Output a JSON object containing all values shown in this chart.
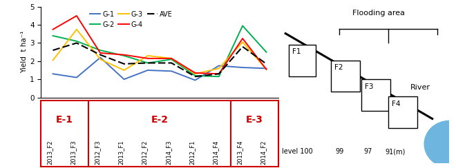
{
  "x_labels": [
    "2013_F2",
    "2013_F3",
    "2012_F3",
    "2013_F1",
    "2012_F2",
    "2014_F3",
    "2012_F1",
    "2014_F4",
    "2013_F4",
    "2014_F2"
  ],
  "G1": [
    1.3,
    1.1,
    2.2,
    1.0,
    1.5,
    1.45,
    0.95,
    1.75,
    1.65,
    1.6
  ],
  "G2": [
    3.4,
    3.1,
    2.6,
    2.3,
    1.9,
    2.1,
    1.2,
    1.15,
    3.95,
    2.5
  ],
  "G3": [
    2.05,
    3.75,
    2.1,
    1.5,
    2.3,
    2.15,
    1.3,
    1.6,
    3.05,
    1.55
  ],
  "G4": [
    3.75,
    4.5,
    2.45,
    2.35,
    2.15,
    2.15,
    1.35,
    1.3,
    3.25,
    1.55
  ],
  "AVE": [
    2.6,
    3.0,
    2.35,
    1.85,
    1.9,
    1.9,
    1.15,
    1.3,
    2.8,
    1.85
  ],
  "colors": {
    "G1": "#4472C4",
    "G2": "#00B050",
    "G3": "#FFC000",
    "G4": "#FF0000",
    "AVE": "#000000"
  },
  "ylim": [
    0,
    5
  ],
  "yticks": [
    0,
    1,
    2,
    3,
    4,
    5
  ],
  "ylabel": "Yield  t ha⁻¹",
  "e_group_color": "#CC0000",
  "flooding_area_label": "Flooding area",
  "field_boxes": [
    "F1",
    "F2",
    "F3",
    "F4"
  ],
  "level_labels": [
    "level 100",
    "99",
    "97",
    "91(m)"
  ],
  "river_label": "River",
  "river_color": "#6EB5E0"
}
